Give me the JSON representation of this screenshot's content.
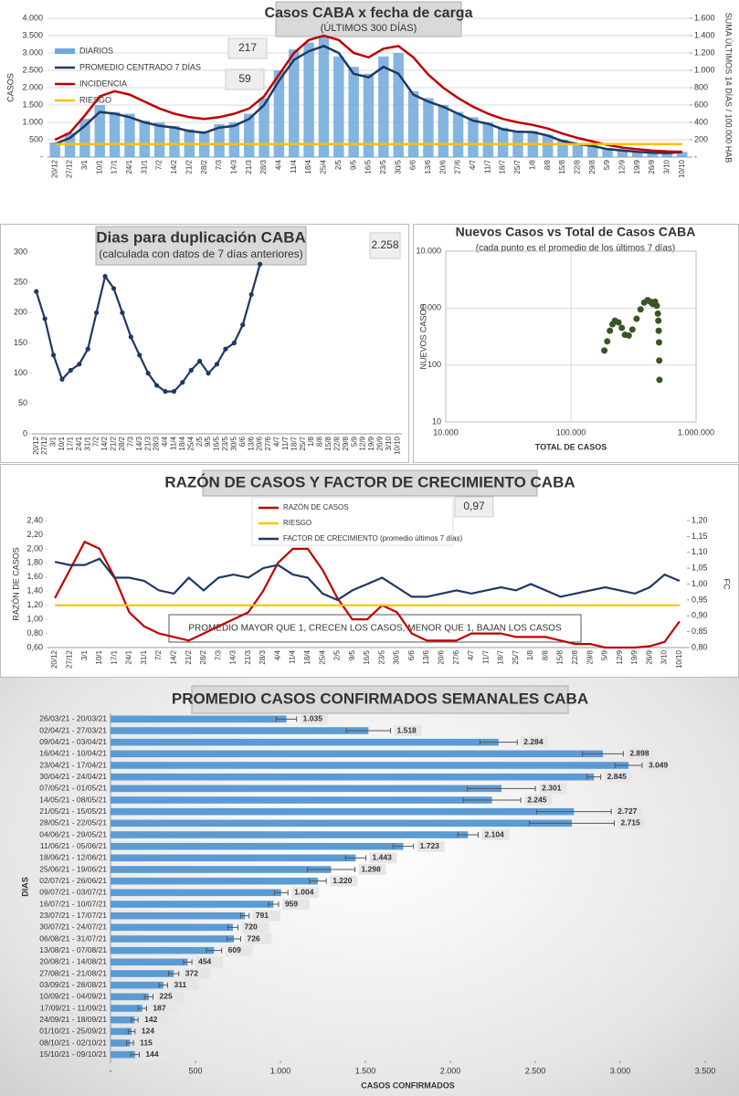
{
  "chart_data": [
    {
      "type": "combo",
      "title": "Casos CABA x fecha de carga",
      "subtitle": "(ÚLTIMOS 300 DÍAS)",
      "y_label": "CASOS",
      "y2_label": "SUMA ÚLTIMOS 14 DÍAS / 100.000 HAB",
      "categories": [
        "20/12",
        "27/12",
        "3/1",
        "10/1",
        "17/1",
        "24/1",
        "31/1",
        "7/2",
        "14/2",
        "21/2",
        "28/2",
        "7/3",
        "14/3",
        "21/3",
        "28/3",
        "4/4",
        "11/4",
        "18/4",
        "25/4",
        "2/5",
        "9/5",
        "16/5",
        "23/5",
        "30/5",
        "6/6",
        "13/6",
        "20/6",
        "27/6",
        "4/7",
        "11/7",
        "18/7",
        "25/7",
        "1/8",
        "8/8",
        "15/8",
        "22/8",
        "29/8",
        "5/9",
        "12/9",
        "19/9",
        "26/9",
        "3/10",
        "10/10"
      ],
      "ylim": [
        0,
        4000
      ],
      "yticks": [
        {
          "value": 0,
          "label": "-"
        },
        500,
        {
          "value": 1000,
          "label": "1.000"
        },
        {
          "value": 1500,
          "label": "1.500"
        },
        {
          "value": 2000,
          "label": "2.000"
        },
        {
          "value": 2500,
          "label": "2.500"
        },
        {
          "value": 3000,
          "label": "3.000"
        },
        {
          "value": 3500,
          "label": "3.500"
        },
        {
          "value": 4000,
          "label": "4.000"
        }
      ],
      "y2lim": [
        0,
        1600
      ],
      "y2ticks": [
        {
          "value": 0,
          "label": "-"
        },
        200,
        400,
        600,
        800,
        {
          "value": 1000,
          "label": "1.000"
        },
        {
          "value": 1200,
          "label": "1.200"
        },
        {
          "value": 1400,
          "label": "1.400"
        },
        {
          "value": 1600,
          "label": "1.600"
        }
      ],
      "grid": true,
      "legend": "upper left",
      "series": [
        {
          "name": "DIARIOS",
          "type": "bar",
          "color": "#6fa8dc",
          "values": [
            420,
            700,
            1100,
            1500,
            1300,
            1250,
            1050,
            1000,
            900,
            800,
            750,
            950,
            1000,
            1250,
            1700,
            2500,
            3100,
            3300,
            3500,
            2900,
            2600,
            2400,
            2900,
            3000,
            1900,
            1700,
            1500,
            1300,
            1150,
            1000,
            850,
            760,
            750,
            650,
            500,
            400,
            350,
            260,
            200,
            170,
            140,
            120,
            150
          ]
        },
        {
          "name": "PROMEDIO CENTRADO 7 DÍAS",
          "type": "line",
          "color": "#1f3864",
          "values": [
            380,
            550,
            900,
            1300,
            1250,
            1150,
            1000,
            900,
            850,
            750,
            700,
            850,
            900,
            1100,
            1500,
            2200,
            2800,
            3050,
            3200,
            3000,
            2400,
            2300,
            2600,
            2400,
            1800,
            1600,
            1450,
            1250,
            1050,
            960,
            800,
            730,
            720,
            620,
            460,
            380,
            320,
            230,
            190,
            150,
            125,
            115,
            144
          ]
        },
        {
          "name": "INCIDENCIA",
          "type": "line",
          "axis": "y2",
          "color": "#c00000",
          "values": [
            200,
            280,
            480,
            700,
            760,
            720,
            640,
            560,
            500,
            460,
            440,
            460,
            500,
            560,
            700,
            950,
            1200,
            1350,
            1400,
            1350,
            1200,
            1150,
            1250,
            1280,
            1150,
            950,
            800,
            680,
            580,
            500,
            440,
            400,
            370,
            330,
            270,
            220,
            180,
            140,
            110,
            90,
            75,
            65,
            60
          ]
        },
        {
          "name": "RIESGO",
          "type": "line",
          "axis": "y2",
          "color": "#ffc000",
          "values": [
            150,
            150,
            150,
            150,
            150,
            150,
            150,
            150,
            150,
            150,
            150,
            150,
            150,
            150,
            150,
            150,
            150,
            150,
            150,
            150,
            150,
            150,
            150,
            150,
            150,
            150,
            150,
            150,
            150,
            150,
            150,
            150,
            150,
            150,
            150,
            150,
            150,
            150,
            150,
            150,
            150,
            150,
            150
          ]
        }
      ],
      "annotations": [
        "217",
        "59"
      ]
    },
    {
      "type": "line",
      "title": "Dias para duplicación CABA",
      "subtitle": "(calculada con datos de 7 días anteriores)",
      "categories": [
        "20/12",
        "27/12",
        "3/1",
        "10/1",
        "17/1",
        "24/1",
        "31/1",
        "7/2",
        "14/2",
        "21/2",
        "28/2",
        "7/3",
        "14/3",
        "21/3",
        "28/3",
        "4/4",
        "11/4",
        "18/4",
        "25/4",
        "2/5",
        "9/5",
        "16/5",
        "23/5",
        "30/5",
        "6/6",
        "13/6",
        "20/6",
        "27/6",
        "4/7",
        "11/7",
        "18/7",
        "25/7",
        "1/8",
        "8/8",
        "15/8",
        "22/8",
        "29/8",
        "5/9",
        "12/9",
        "19/9",
        "26/9",
        "3/10",
        "10/10"
      ],
      "ylim": [
        0,
        300
      ],
      "yticks": [
        0,
        50,
        100,
        150,
        200,
        250,
        300
      ],
      "grid": false,
      "markers": true,
      "color": "#1f3864",
      "values": [
        235,
        190,
        130,
        90,
        105,
        115,
        140,
        200,
        260,
        240,
        200,
        160,
        130,
        100,
        80,
        70,
        70,
        85,
        105,
        120,
        100,
        115,
        140,
        150,
        180,
        230,
        280,
        null,
        null,
        null,
        null,
        null,
        null,
        null,
        null,
        null,
        null,
        null,
        null,
        null,
        null,
        null,
        null
      ],
      "annotations": [
        "2.258"
      ]
    },
    {
      "type": "scatter",
      "title": "Nuevos Casos vs Total de Casos CABA",
      "subtitle": "(cada punto es el promedio de los últimos 7 días)",
      "x_label": "TOTAL DE CASOS",
      "y_label": "NUEVOS CASOS",
      "log_scale": true,
      "grid": true,
      "color": "#375623",
      "xlim": [
        10000,
        1000000
      ],
      "xticks": [
        {
          "value": 10000,
          "label": "10.000"
        },
        {
          "value": 100000,
          "label": "100.000"
        },
        {
          "value": 1000000,
          "label": "1.000.000"
        }
      ],
      "ylim": [
        10,
        10000
      ],
      "yticks": [
        10,
        100,
        {
          "value": 1000,
          "label": "1.000"
        },
        {
          "value": 10000,
          "label": "10.000"
        }
      ],
      "x": [
        185000,
        195000,
        205000,
        215000,
        225000,
        240000,
        255000,
        270000,
        290000,
        310000,
        335000,
        360000,
        385000,
        410000,
        430000,
        450000,
        470000,
        485000,
        495000,
        500000,
        503000,
        506000,
        508000,
        510000
      ],
      "values": [
        180,
        260,
        400,
        520,
        600,
        560,
        450,
        340,
        330,
        420,
        650,
        950,
        1250,
        1380,
        1300,
        1180,
        1300,
        1100,
        800,
        600,
        400,
        250,
        120,
        55
      ]
    },
    {
      "type": "line",
      "title": "RAZÓN DE CASOS Y FACTOR DE CRECIMIENTO CABA",
      "y_label": "RAZÓN DE CASOS",
      "y2_label": "FC",
      "categories": [
        "20/12",
        "27/12",
        "3/1",
        "10/1",
        "17/1",
        "24/1",
        "31/1",
        "7/2",
        "14/2",
        "21/2",
        "28/2",
        "7/3",
        "14/3",
        "21/3",
        "28/3",
        "4/4",
        "11/4",
        "18/4",
        "25/4",
        "2/5",
        "9/5",
        "16/5",
        "23/5",
        "30/5",
        "6/6",
        "13/6",
        "20/6",
        "27/6",
        "4/7",
        "11/7",
        "18/7",
        "25/7",
        "1/8",
        "8/8",
        "15/8",
        "22/8",
        "29/8",
        "5/9",
        "12/9",
        "19/9",
        "26/9",
        "3/10",
        "10/10"
      ],
      "ylim": [
        0.6,
        2.4
      ],
      "yticks": [
        {
          "value": 0.6,
          "label": "0,60"
        },
        {
          "value": 0.8,
          "label": "0,80"
        },
        {
          "value": 1.0,
          "label": "1,00"
        },
        {
          "value": 1.2,
          "label": "1,20"
        },
        {
          "value": 1.4,
          "label": "1,40"
        },
        {
          "value": 1.6,
          "label": "1,60"
        },
        {
          "value": 1.8,
          "label": "1,80"
        },
        {
          "value": 2.0,
          "label": "2,00"
        },
        {
          "value": 2.2,
          "label": "2,20"
        },
        {
          "value": 2.4,
          "label": "2,40"
        }
      ],
      "y2lim": [
        0.8,
        1.2
      ],
      "y2ticks": [
        {
          "value": 0.8,
          "label": "0,80"
        },
        {
          "value": 0.85,
          "label": "0,85"
        },
        {
          "value": 0.9,
          "label": "0,90"
        },
        {
          "value": 0.95,
          "label": "0,95"
        },
        {
          "value": 1.0,
          "label": "1,00"
        },
        {
          "value": 1.05,
          "label": "1,05"
        },
        {
          "value": 1.1,
          "label": "1,10"
        },
        {
          "value": 1.15,
          "label": "1,15"
        },
        {
          "value": 1.2,
          "label": "1,20"
        }
      ],
      "grid": false,
      "legend": "upper center",
      "series": [
        {
          "name": "RAZÓN DE CASOS",
          "color": "#c00000",
          "values": [
            1.3,
            1.7,
            2.1,
            2.0,
            1.6,
            1.1,
            0.9,
            0.8,
            0.75,
            0.7,
            0.8,
            0.9,
            1.0,
            1.1,
            1.4,
            1.8,
            2.0,
            2.0,
            1.7,
            1.3,
            1.0,
            1.0,
            1.2,
            1.1,
            0.8,
            0.7,
            0.7,
            0.7,
            0.8,
            0.8,
            0.8,
            0.75,
            0.75,
            0.75,
            0.7,
            0.65,
            0.65,
            0.6,
            0.6,
            0.6,
            0.62,
            0.68,
            0.97
          ]
        },
        {
          "name": "RIESGO",
          "color": "#ffc000",
          "values": [
            1.2,
            1.2,
            1.2,
            1.2,
            1.2,
            1.2,
            1.2,
            1.2,
            1.2,
            1.2,
            1.2,
            1.2,
            1.2,
            1.2,
            1.2,
            1.2,
            1.2,
            1.2,
            1.2,
            1.2,
            1.2,
            1.2,
            1.2,
            1.2,
            1.2,
            1.2,
            1.2,
            1.2,
            1.2,
            1.2,
            1.2,
            1.2,
            1.2,
            1.2,
            1.2,
            1.2,
            1.2,
            1.2,
            1.2,
            1.2,
            1.2,
            1.2,
            1.2
          ]
        },
        {
          "name": "FACTOR DE CRECIMIENTO (promedio últimos 7 días)",
          "axis": "y2",
          "color": "#1f3864",
          "values": [
            1.07,
            1.06,
            1.06,
            1.08,
            1.02,
            1.02,
            1.01,
            0.98,
            0.97,
            1.02,
            0.98,
            1.02,
            1.03,
            1.02,
            1.05,
            1.06,
            1.03,
            1.02,
            0.97,
            0.95,
            0.98,
            1.0,
            1.02,
            0.99,
            0.96,
            0.96,
            0.97,
            0.98,
            0.97,
            0.98,
            0.99,
            0.98,
            1.0,
            0.98,
            0.96,
            0.97,
            0.98,
            0.99,
            0.98,
            0.97,
            0.99,
            1.03,
            1.01
          ]
        }
      ],
      "annotations": [
        "0,97",
        "PROMEDIO MAYOR QUE 1, CRECEN LOS CASOS, MENOR QUE 1, BAJAN LOS CASOS"
      ]
    },
    {
      "type": "hbar",
      "title": "PROMEDIO CASOS CONFIRMADOS SEMANALES CABA",
      "x_label": "CASOS CONFIRMADOS",
      "y_label": "DIAS",
      "color": "#5b9bd5",
      "xlim": [
        0,
        3500
      ],
      "xticks": [
        {
          "value": 0,
          "label": "-"
        },
        500,
        {
          "value": 1000,
          "label": "1.000"
        },
        {
          "value": 1500,
          "label": "1.500"
        },
        {
          "value": 2000,
          "label": "2.000"
        },
        {
          "value": 2500,
          "label": "2.500"
        },
        {
          "value": 3000,
          "label": "3.000"
        },
        {
          "value": 3500,
          "label": "3.500"
        }
      ],
      "categories": [
        "26/03/21 - 20/03/21",
        "02/04/21 - 27/03/21",
        "09/04/21 - 03/04/21",
        "16/04/21 - 10/04/21",
        "23/04/21 - 17/04/21",
        "30/04/21 - 24/04/21",
        "07/05/21 - 01/05/21",
        "14/05/21 - 08/05/21",
        "21/05/21 - 15/05/21",
        "28/05/21 - 22/05/21",
        "04/06/21 - 29/05/21",
        "11/06/21 - 05/06/21",
        "18/06/21 - 12/06/21",
        "25/06/21 - 19/06/21",
        "02/07/21 - 26/06/21",
        "09/07/21 - 03/07/21",
        "16/07/21 - 10/07/21",
        "23/07/21 - 17/07/21",
        "30/07/21 - 24/07/21",
        "06/08/21 - 31/07/21",
        "13/08/21 - 07/08/21",
        "20/08/21 - 14/08/21",
        "27/08/21 - 21/08/21",
        "03/09/21 - 28/08/21",
        "10/09/21 - 04/09/21",
        "17/09/21 - 11/09/21",
        "24/09/21 - 18/09/21",
        "01/10/21 - 25/09/21",
        "08/10/21 - 02/10/21",
        "15/10/21 - 09/10/21"
      ],
      "values": [
        1035,
        1518,
        2284,
        2898,
        3049,
        2845,
        2301,
        2245,
        2727,
        2715,
        2104,
        1723,
        1443,
        1298,
        1220,
        1004,
        959,
        791,
        720,
        726,
        609,
        454,
        372,
        311,
        225,
        187,
        142,
        124,
        115,
        144
      ],
      "value_labels": [
        "1.035",
        "1.518",
        "2.284",
        "2.898",
        "3.049",
        "2.845",
        "2.301",
        "2.245",
        "2.727",
        "2.715",
        "2.104",
        "1.723",
        "1.443",
        "1.298",
        "1.220",
        "1.004",
        "959",
        "791",
        "720",
        "726",
        "609",
        "454",
        "372",
        "311",
        "225",
        "187",
        "142",
        "124",
        "115",
        "144"
      ],
      "errors": [
        60,
        130,
        110,
        120,
        80,
        40,
        200,
        170,
        220,
        250,
        60,
        60,
        60,
        140,
        50,
        40,
        30,
        25,
        30,
        40,
        45,
        25,
        30,
        25,
        25,
        25,
        20,
        20,
        20,
        25
      ]
    }
  ]
}
